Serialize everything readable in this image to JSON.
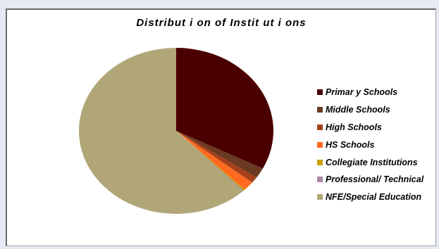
{
  "chart_data": {
    "type": "pie",
    "title": "Distribut i on of Instit ut i ons",
    "legend_position": "right",
    "start_angle_deg": 0,
    "slices": [
      {
        "label": "Primar y Schools",
        "value": 32.5,
        "color": "#4a0000"
      },
      {
        "label": "Middle Schools",
        "value": 2.0,
        "color": "#6b3a22"
      },
      {
        "label": "High Schools",
        "value": 1.2,
        "color": "#a6401a"
      },
      {
        "label": "HS Schools",
        "value": 1.8,
        "color": "#ff6a1f"
      },
      {
        "label": "Collegiate Institutions",
        "value": 0.3,
        "color": "#c9a20a"
      },
      {
        "label": "Professional/ Technical",
        "value": 0.2,
        "color": "#a987a5"
      },
      {
        "label": "NFE/Special Education",
        "value": 62.0,
        "color": "#b0a677"
      }
    ]
  }
}
